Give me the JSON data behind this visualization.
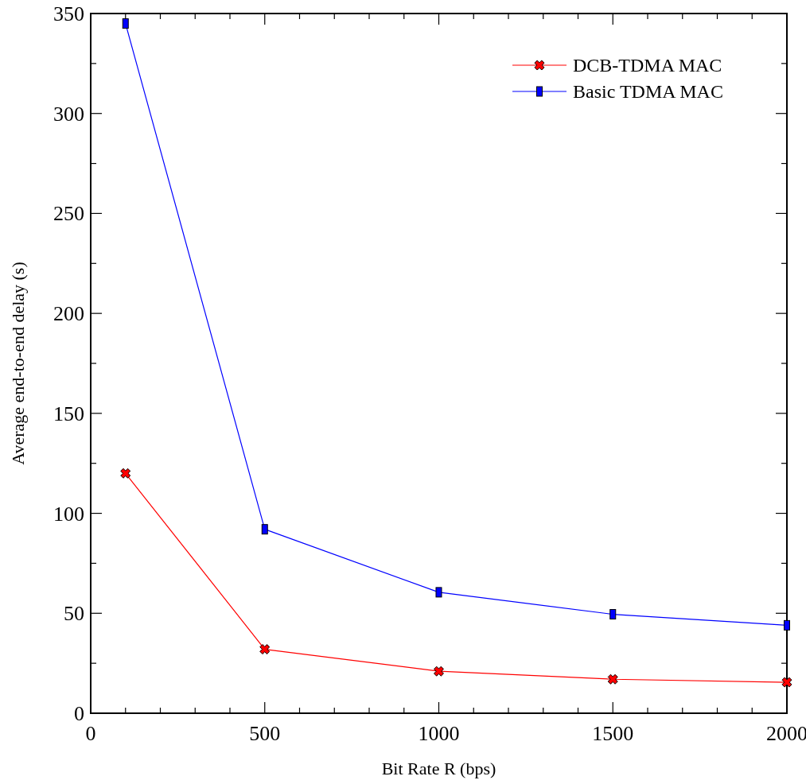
{
  "chart_data": {
    "type": "line",
    "xlabel": "Bit Rate R (bps)",
    "ylabel": "Average end-to-end delay (s)",
    "x": [
      100,
      500,
      1000,
      1500,
      2000
    ],
    "series": [
      {
        "name": "DCB-TDMA MAC",
        "color": "#ff0000",
        "marker": "cross",
        "values": [
          120,
          32,
          21,
          17,
          15.5
        ]
      },
      {
        "name": "Basic TDMA MAC",
        "color": "#0000ff",
        "marker": "square",
        "values": [
          345,
          92,
          60.5,
          49.5,
          44
        ]
      }
    ],
    "xlim": [
      0,
      2000
    ],
    "xticks": [
      0,
      {
        "value": 100,
        "label": null
      },
      {
        "value": 200,
        "label": null
      },
      {
        "value": 300,
        "label": null
      },
      {
        "value": 400,
        "label": null
      },
      500,
      {
        "value": 600,
        "label": null
      },
      {
        "value": 700,
        "label": null
      },
      {
        "value": 800,
        "label": null
      },
      {
        "value": 900,
        "label": null
      },
      1000,
      {
        "value": 1100,
        "label": null
      },
      {
        "value": 1200,
        "label": null
      },
      {
        "value": 1300,
        "label": null
      },
      {
        "value": 1400,
        "label": null
      },
      1500,
      {
        "value": 1600,
        "label": null
      },
      {
        "value": 1700,
        "label": null
      },
      {
        "value": 1800,
        "label": null
      },
      {
        "value": 1900,
        "label": null
      },
      2000
    ],
    "ylim": [
      0,
      350
    ],
    "yticks": [
      0,
      {
        "value": 25,
        "label": null
      },
      50,
      {
        "value": 75,
        "label": null
      },
      100,
      {
        "value": 125,
        "label": null
      },
      150,
      {
        "value": 175,
        "label": null
      },
      200,
      {
        "value": 225,
        "label": null
      },
      250,
      {
        "value": 275,
        "label": null
      },
      300,
      {
        "value": 325,
        "label": null
      },
      350
    ],
    "grid": false,
    "legend": "top right",
    "line_style": "solid"
  }
}
